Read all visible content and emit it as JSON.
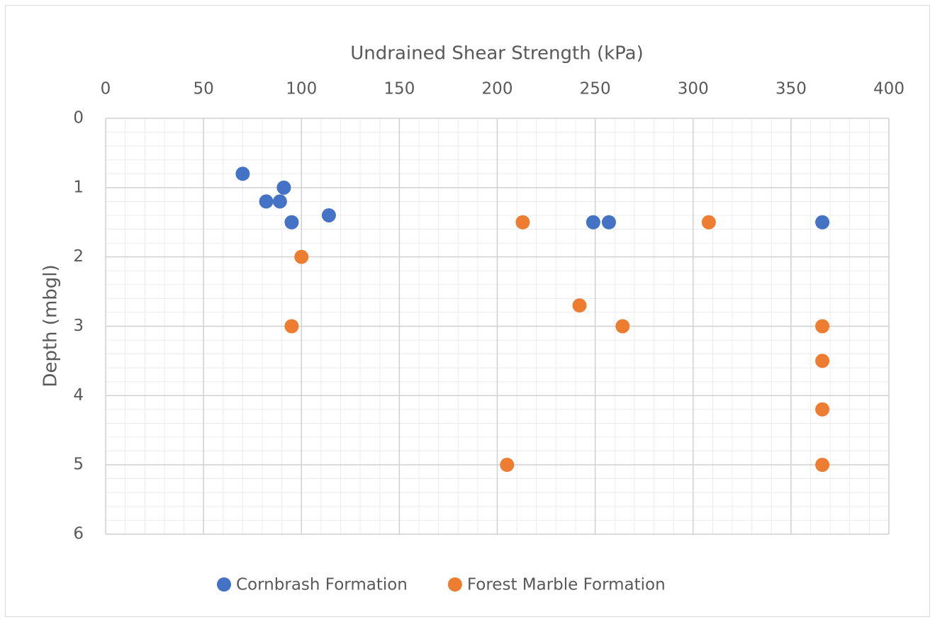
{
  "chart_data": {
    "type": "scatter",
    "x_label": "Undrained Shear Strength (kPa)",
    "y_label": "Depth (mbgl)",
    "xlim": [
      0,
      400
    ],
    "xticks": [
      0,
      50,
      100,
      150,
      200,
      250,
      300,
      350,
      400
    ],
    "ylim": [
      0,
      6
    ],
    "yticks": [
      0,
      1,
      2,
      3,
      4,
      5,
      6
    ],
    "x_axis_position": "top",
    "y_inverted": true,
    "grid": true,
    "minor_grid": true,
    "legend": "bottom",
    "series": [
      {
        "name": "Cornbrash Formation",
        "color": "#4472c4",
        "x": [
          70,
          91,
          82,
          89,
          114,
          95,
          249,
          257,
          366
        ],
        "y": [
          0.8,
          1.0,
          1.2,
          1.2,
          1.4,
          1.5,
          1.5,
          1.5,
          1.5
        ]
      },
      {
        "name": "Forest Marble Formation",
        "color": "#ed7d31",
        "x": [
          213,
          308,
          100,
          242,
          95,
          264,
          366,
          366,
          366,
          205,
          366
        ],
        "y": [
          1.5,
          1.5,
          2.0,
          2.7,
          3.0,
          3.0,
          3.0,
          3.5,
          4.2,
          5.0,
          5.0
        ]
      }
    ]
  }
}
